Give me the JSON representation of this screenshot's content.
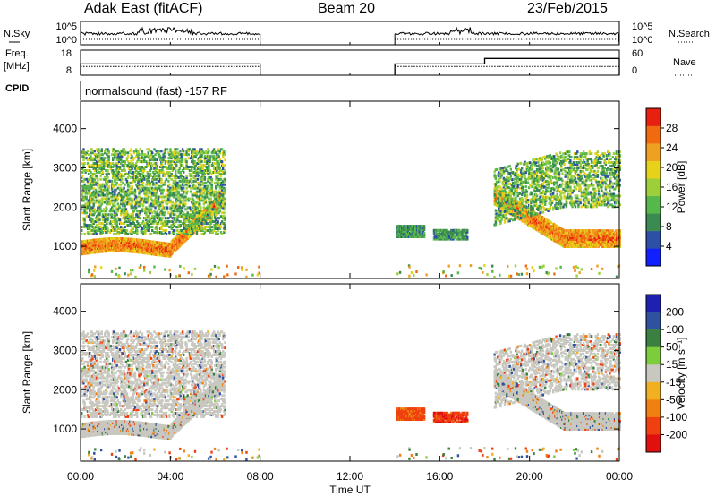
{
  "header": {
    "title": "Adak East (fitACF)",
    "beam": "Beam 20",
    "date": "23/Feb/2015"
  },
  "chart_data": [
    {
      "type": "line",
      "panel": "noise",
      "left_label": "N.Sky",
      "right_label": "N.Search",
      "left_ticks": [
        "10^5",
        "10^0"
      ],
      "right_ticks": [
        "10^5",
        "10^0"
      ],
      "segments": [
        [
          "00:00",
          "08:00"
        ],
        [
          "14:00",
          "24:00"
        ]
      ]
    },
    {
      "type": "line",
      "panel": "frequency",
      "left_label": "Freq.\n[MHz]",
      "right_label": "Nave",
      "left_ticks": [
        18,
        8
      ],
      "right_ticks": [
        60,
        0
      ],
      "freq_mhz": 11.5,
      "nave_segments": [
        {
          "from": "00:00",
          "to": "08:00",
          "value": 27
        },
        {
          "from": "14:00",
          "to": "18:00",
          "value": 27
        },
        {
          "from": "18:00",
          "to": "24:00",
          "value": 40
        }
      ]
    },
    {
      "type": "text",
      "panel": "cpid",
      "label": "CPID",
      "text": "normalsound (fast) -157 RF"
    },
    {
      "type": "heatmap",
      "panel": "power",
      "ylabel": "Slant Range [km]",
      "yticks": [
        1000,
        2000,
        3000,
        4000
      ],
      "ylim": [
        180,
        4700
      ],
      "xlim_hours": [
        0,
        24
      ],
      "colorbar": {
        "label": "Power [dB]",
        "ticks": [
          4,
          8,
          12,
          16,
          20,
          24,
          28
        ],
        "range": [
          0,
          32
        ],
        "colors": [
          "#1020ff",
          "#2e4fa8",
          "#3b8a52",
          "#56b84a",
          "#9ccf3a",
          "#e6d21a",
          "#f0a020",
          "#f06a10",
          "#e82010"
        ]
      }
    },
    {
      "type": "heatmap",
      "panel": "velocity",
      "ylabel": "Slant Range [km]",
      "yticks": [
        1000,
        2000,
        3000,
        4000
      ],
      "ylim": [
        180,
        4700
      ],
      "xlim_hours": [
        0,
        24
      ],
      "xticks": [
        "00:00",
        "04:00",
        "08:00",
        "12:00",
        "16:00",
        "20:00",
        "00:00"
      ],
      "xlabel": "Time UT",
      "colorbar": {
        "label": "Velocity [m s⁻¹]",
        "ticks": [
          200,
          100,
          50,
          15,
          -15,
          -50,
          -100,
          -200
        ],
        "colors": [
          "#2020b0",
          "#3050a0",
          "#3a8040",
          "#7ccc3c",
          "#c8c8c0",
          "#f0b020",
          "#f08010",
          "#f04010",
          "#e01010"
        ]
      }
    }
  ]
}
